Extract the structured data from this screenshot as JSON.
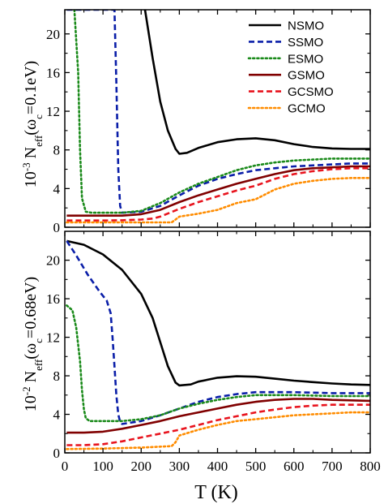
{
  "chart_data": [
    {
      "type": "line",
      "panel": "top",
      "ylabel_parts": {
        "prefix": "10",
        "exp": "-3",
        "n": " N",
        "sub": "eff",
        "paren_open": "(ω",
        "sub2": "c",
        "rest": "=0.1eV)"
      },
      "xlim": [
        0,
        800
      ],
      "ylim": [
        0,
        22.5
      ],
      "yticks": [
        0,
        4,
        8,
        12,
        16,
        20
      ],
      "legend_position": "top-right",
      "series": [
        {
          "name": "NSMO",
          "color": "#000000",
          "dash": "solid",
          "x": [
            210,
            230,
            250,
            270,
            290,
            300,
            320,
            350,
            400,
            450,
            500,
            550,
            600,
            650,
            700,
            750,
            800
          ],
          "y": [
            22.5,
            17.5,
            13.0,
            10.0,
            8.1,
            7.6,
            7.7,
            8.2,
            8.8,
            9.1,
            9.2,
            9.0,
            8.6,
            8.3,
            8.15,
            8.1,
            8.1
          ]
        },
        {
          "name": "SSMO",
          "color": "#0a1ea8",
          "dash": "dashed",
          "x": [
            5,
            50,
            100,
            130,
            135,
            140,
            145,
            150,
            200,
            250,
            300,
            350,
            400,
            450,
            500,
            550,
            600,
            650,
            700,
            750,
            800
          ],
          "y": [
            22.5,
            22.5,
            22.5,
            22.5,
            15.0,
            6.0,
            2.2,
            1.5,
            1.6,
            2.2,
            3.3,
            4.3,
            5.0,
            5.5,
            5.9,
            6.1,
            6.3,
            6.4,
            6.5,
            6.6,
            6.6
          ]
        },
        {
          "name": "ESMO",
          "color": "#1a8a1a",
          "dash": "dotted",
          "x": [
            25,
            35,
            40,
            45,
            55,
            70,
            100,
            150,
            200,
            250,
            300,
            350,
            400,
            450,
            500,
            550,
            600,
            650,
            700,
            750,
            800
          ],
          "y": [
            22.5,
            16.0,
            8.0,
            3.0,
            1.6,
            1.5,
            1.5,
            1.5,
            1.7,
            2.5,
            3.6,
            4.5,
            5.2,
            5.9,
            6.4,
            6.7,
            6.9,
            7.0,
            7.1,
            7.1,
            7.1
          ]
        },
        {
          "name": "GSMO",
          "color": "#800000",
          "dash": "solid",
          "x": [
            5,
            50,
            100,
            150,
            200,
            250,
            300,
            350,
            400,
            450,
            500,
            550,
            600,
            650,
            700,
            750,
            800
          ],
          "y": [
            1.2,
            1.2,
            1.2,
            1.2,
            1.35,
            1.8,
            2.6,
            3.3,
            3.9,
            4.5,
            5.0,
            5.5,
            5.9,
            6.1,
            6.2,
            6.3,
            6.3
          ]
        },
        {
          "name": "GCSMO",
          "color": "#e8141e",
          "dash": "dashed",
          "x": [
            5,
            50,
            100,
            150,
            200,
            230,
            250,
            300,
            350,
            400,
            450,
            500,
            550,
            600,
            650,
            700,
            750,
            800
          ],
          "y": [
            0.7,
            0.7,
            0.7,
            0.72,
            0.8,
            0.9,
            1.1,
            1.9,
            2.6,
            3.2,
            3.8,
            4.3,
            5.0,
            5.5,
            5.8,
            6.0,
            6.1,
            6.1
          ]
        },
        {
          "name": "GCMO",
          "color": "#ff8c00",
          "dash": "dotted",
          "x": [
            5,
            100,
            200,
            280,
            290,
            300,
            350,
            400,
            450,
            500,
            520,
            550,
            600,
            650,
            700,
            750,
            800
          ],
          "y": [
            0.5,
            0.5,
            0.5,
            0.5,
            0.8,
            1.1,
            1.4,
            1.8,
            2.5,
            2.9,
            3.3,
            3.9,
            4.5,
            4.8,
            5.0,
            5.1,
            5.1
          ]
        }
      ]
    },
    {
      "type": "line",
      "panel": "bottom",
      "xlabel": "T (K)",
      "ylabel_parts": {
        "prefix": "10",
        "exp": "-2",
        "n": " N",
        "sub": "eff",
        "paren_open": "(ω",
        "sub2": "c",
        "rest": "=0.68eV)"
      },
      "xlim": [
        0,
        800
      ],
      "ylim": [
        0,
        23
      ],
      "yticks": [
        0,
        4,
        8,
        12,
        16,
        20
      ],
      "xticks": [
        0,
        100,
        200,
        300,
        400,
        500,
        600,
        700,
        800
      ],
      "series": [
        {
          "name": "NSMO",
          "color": "#000000",
          "dash": "solid",
          "x": [
            5,
            50,
            100,
            150,
            200,
            230,
            250,
            270,
            290,
            300,
            330,
            350,
            400,
            450,
            500,
            550,
            600,
            650,
            700,
            750,
            800
          ],
          "y": [
            22.0,
            21.6,
            20.6,
            19.0,
            16.5,
            14.0,
            11.5,
            9.0,
            7.3,
            7.0,
            7.1,
            7.4,
            7.8,
            7.95,
            7.9,
            7.7,
            7.5,
            7.35,
            7.2,
            7.1,
            7.05
          ]
        },
        {
          "name": "SSMO",
          "color": "#0a1ea8",
          "dash": "dashed",
          "x": [
            5,
            30,
            60,
            90,
            110,
            120,
            125,
            130,
            135,
            140,
            145,
            150,
            200,
            250,
            300,
            350,
            400,
            450,
            500,
            550,
            600,
            700,
            800
          ],
          "y": [
            22.0,
            20.5,
            18.5,
            16.8,
            15.8,
            14.5,
            12.0,
            9.0,
            6.0,
            4.0,
            3.2,
            3.0,
            3.3,
            3.9,
            4.6,
            5.3,
            5.8,
            6.1,
            6.3,
            6.3,
            6.3,
            6.2,
            6.2
          ]
        },
        {
          "name": "ESMO",
          "color": "#1a8a1a",
          "dash": "dotted",
          "x": [
            5,
            20,
            30,
            40,
            45,
            50,
            55,
            65,
            80,
            100,
            150,
            200,
            250,
            300,
            350,
            400,
            450,
            500,
            550,
            600,
            700,
            800
          ],
          "y": [
            15.3,
            14.8,
            13.0,
            9.5,
            6.5,
            4.5,
            3.6,
            3.3,
            3.3,
            3.3,
            3.3,
            3.5,
            3.9,
            4.6,
            5.1,
            5.5,
            5.8,
            6.0,
            6.0,
            6.0,
            5.9,
            5.9
          ]
        },
        {
          "name": "GSMO",
          "color": "#800000",
          "dash": "solid",
          "x": [
            5,
            50,
            100,
            150,
            200,
            250,
            300,
            350,
            400,
            450,
            500,
            550,
            600,
            650,
            700,
            750,
            800
          ],
          "y": [
            2.1,
            2.1,
            2.2,
            2.5,
            2.9,
            3.3,
            3.8,
            4.2,
            4.6,
            5.0,
            5.3,
            5.5,
            5.6,
            5.6,
            5.5,
            5.45,
            5.4
          ]
        },
        {
          "name": "GCSMO",
          "color": "#e8141e",
          "dash": "dashed",
          "x": [
            5,
            50,
            100,
            150,
            200,
            250,
            300,
            350,
            400,
            450,
            500,
            550,
            600,
            650,
            700,
            750,
            800
          ],
          "y": [
            0.8,
            0.8,
            0.9,
            1.2,
            1.6,
            2.0,
            2.4,
            2.9,
            3.4,
            3.8,
            4.2,
            4.5,
            4.75,
            4.9,
            5.0,
            5.0,
            5.0
          ]
        },
        {
          "name": "GCMO",
          "color": "#ff8c00",
          "dash": "dotted",
          "x": [
            5,
            100,
            200,
            280,
            290,
            300,
            350,
            400,
            450,
            500,
            550,
            600,
            650,
            700,
            750,
            800
          ],
          "y": [
            0.4,
            0.45,
            0.55,
            0.7,
            1.1,
            1.8,
            2.4,
            2.9,
            3.3,
            3.5,
            3.7,
            3.9,
            4.0,
            4.1,
            4.2,
            4.2
          ]
        }
      ]
    }
  ]
}
